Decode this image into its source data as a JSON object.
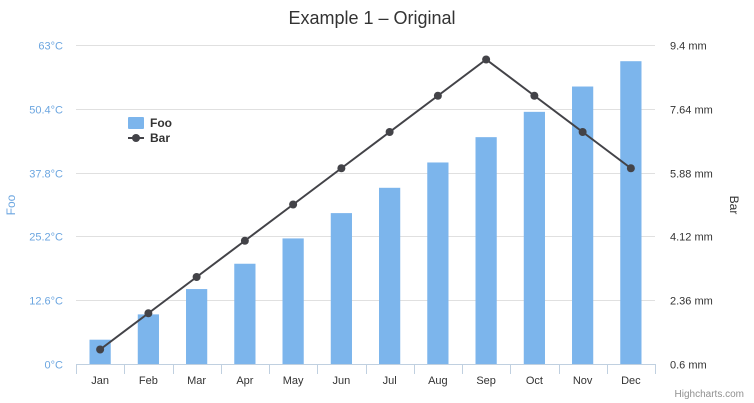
{
  "chart_data": {
    "type": "bar",
    "title": "Example 1 – Original",
    "categories": [
      "Jan",
      "Feb",
      "Mar",
      "Apr",
      "May",
      "Jun",
      "Jul",
      "Aug",
      "Sep",
      "Oct",
      "Nov",
      "Dec"
    ],
    "series": [
      {
        "name": "Foo",
        "type": "bar",
        "axis": "left",
        "color": "#7cb5ec",
        "values": [
          4.8,
          9.8,
          14.8,
          19.8,
          24.8,
          29.8,
          34.8,
          39.8,
          44.8,
          49.8,
          54.8,
          59.8
        ]
      },
      {
        "name": "Bar",
        "type": "line",
        "axis": "right",
        "color": "#434348",
        "values": [
          1,
          2,
          3,
          4,
          5,
          6,
          7,
          8,
          9,
          8,
          7,
          6
        ]
      }
    ],
    "yaxis_left": {
      "label": "Foo",
      "range": [
        0,
        63
      ],
      "ticks": [
        0,
        12.6,
        25.2,
        37.8,
        50.4,
        63
      ],
      "tick_labels": [
        "0°C",
        "12.6°C",
        "25.2°C",
        "37.8°C",
        "50.4°C",
        "63°C"
      ]
    },
    "yaxis_right": {
      "label": "Bar",
      "range": [
        0.6,
        9.4
      ],
      "ticks": [
        0.6,
        2.36,
        4.12,
        5.88,
        7.64,
        9.4
      ],
      "tick_labels": [
        "0.6 mm",
        "2.36 mm",
        "4.12 mm",
        "5.88 mm",
        "7.64 mm",
        "9.4 mm"
      ]
    },
    "grid": true,
    "legend_position": "top-left"
  },
  "credits": "Highcharts.com"
}
